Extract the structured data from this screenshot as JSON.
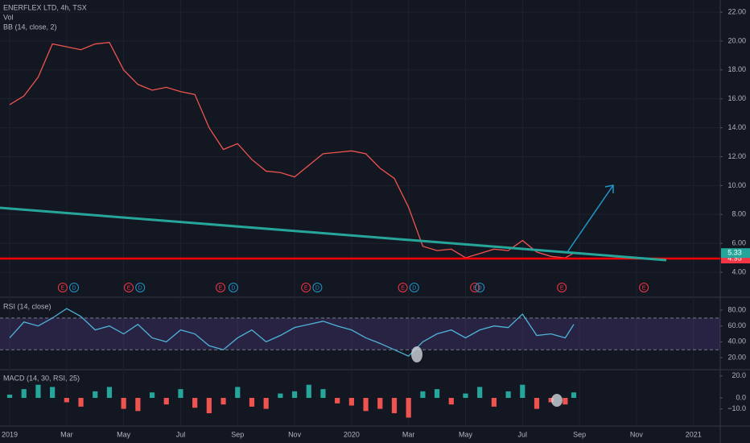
{
  "chart_data": [
    {
      "type": "line",
      "title": "ENERFLEX LTD, 4h, TSX",
      "volume_label": "Vol",
      "indicator": "BB (14, close, 2)",
      "x": [
        0,
        0.5,
        1,
        1.5,
        2,
        2.5,
        3,
        3.5,
        4,
        4.5,
        5,
        5.5,
        6,
        6.5,
        7,
        7.5,
        8,
        8.5,
        9,
        9.5,
        10,
        10.5,
        11,
        11.5,
        12,
        12.5,
        13,
        13.5,
        14,
        14.5,
        15,
        15.5,
        16,
        16.5,
        17,
        17.5,
        18,
        18.5,
        19,
        19.5,
        19.8
      ],
      "values": [
        15.6,
        16.2,
        17.5,
        19.8,
        19.6,
        19.4,
        19.8,
        19.9,
        18.0,
        17.0,
        16.6,
        16.8,
        16.5,
        16.3,
        14.0,
        12.5,
        12.9,
        11.8,
        11.0,
        10.9,
        10.6,
        11.4,
        12.2,
        12.3,
        12.4,
        12.2,
        11.2,
        10.5,
        8.5,
        5.8,
        5.5,
        5.6,
        5.0,
        5.3,
        5.6,
        5.5,
        6.2,
        5.4,
        5.1,
        5.0,
        5.33
      ],
      "color": "#ef5350",
      "last_value": 5.33,
      "last_label": "5.33",
      "level": 4.95,
      "level_label": "4.95",
      "xlim": [
        -0.34,
        24.94
      ],
      "ylim": [
        2.33,
        22.84
      ],
      "xticks": [
        {
          "value": 0,
          "label": "2019"
        },
        {
          "value": 2,
          "label": "Mar"
        },
        {
          "value": 4,
          "label": "May"
        },
        {
          "value": 6,
          "label": "Jul"
        },
        {
          "value": 8,
          "label": "Sep"
        },
        {
          "value": 10,
          "label": "Nov"
        },
        {
          "value": 12,
          "label": "2020"
        },
        {
          "value": 14,
          "label": "Mar"
        },
        {
          "value": 16,
          "label": "May"
        },
        {
          "value": 18,
          "label": "Jul"
        },
        {
          "value": 20,
          "label": "Sep"
        },
        {
          "value": 22,
          "label": "Nov"
        },
        {
          "value": 24,
          "label": "2021"
        }
      ],
      "yticks": [
        {
          "value": 4,
          "label": "4.00"
        },
        {
          "value": 6,
          "label": "6.00"
        },
        {
          "value": 8,
          "label": "8.00"
        },
        {
          "value": 10,
          "label": "10.00"
        },
        {
          "value": 12,
          "label": "12.00"
        },
        {
          "value": 14,
          "label": "14.00"
        },
        {
          "value": 16,
          "label": "16.00"
        },
        {
          "value": 18,
          "label": "18.00"
        },
        {
          "value": 20,
          "label": "20.00"
        },
        {
          "value": 22,
          "label": "22.00"
        }
      ],
      "grid": true,
      "events": [
        {
          "label": "E",
          "x": 1.86
        },
        {
          "label": "D",
          "x": 2.26
        },
        {
          "label": "E",
          "x": 4.18
        },
        {
          "label": "D",
          "x": 4.58
        },
        {
          "label": "E",
          "x": 7.4
        },
        {
          "label": "D",
          "x": 7.85
        },
        {
          "label": "E",
          "x": 10.4
        },
        {
          "label": "D",
          "x": 10.8
        },
        {
          "label": "E",
          "x": 13.8
        },
        {
          "label": "D",
          "x": 14.2
        },
        {
          "label": "E",
          "x": 16.33
        },
        {
          "label": "D",
          "x": 16.5
        },
        {
          "label": "E",
          "x": 19.38
        },
        {
          "label": "E",
          "x": 22.26
        }
      ]
    },
    {
      "type": "line",
      "title": "RSI (14, close)",
      "x": [
        0,
        0.5,
        1,
        1.5,
        2,
        2.5,
        3,
        3.5,
        4,
        4.5,
        5,
        5.5,
        6,
        6.5,
        7,
        7.5,
        8,
        8.5,
        9,
        9.5,
        10,
        10.5,
        11,
        11.5,
        12,
        12.5,
        13,
        13.5,
        14,
        14.5,
        15,
        15.5,
        16,
        16.5,
        17,
        17.5,
        18,
        18.5,
        19,
        19.5,
        19.8
      ],
      "values": [
        45,
        65,
        60,
        70,
        82,
        72,
        55,
        60,
        50,
        62,
        45,
        40,
        55,
        50,
        35,
        30,
        45,
        55,
        40,
        48,
        58,
        62,
        66,
        60,
        55,
        45,
        38,
        30,
        22,
        40,
        50,
        55,
        45,
        55,
        60,
        58,
        75,
        48,
        50,
        45,
        62
      ],
      "color": "#4fb3d9",
      "band": [
        30,
        70
      ],
      "xlim": [
        -0.34,
        24.94
      ],
      "ylim": [
        5.8,
        95.3
      ],
      "yticks": [
        {
          "value": 20,
          "label": "20.00"
        },
        {
          "value": 40,
          "label": "40.00"
        },
        {
          "value": 60,
          "label": "60.00"
        },
        {
          "value": 80,
          "label": "80.00"
        }
      ]
    },
    {
      "type": "bar",
      "title": "MACD (14, 30, RSI, 25)",
      "x": [
        0,
        0.5,
        1,
        1.5,
        2,
        2.5,
        3,
        3.5,
        4,
        4.5,
        5,
        5.5,
        6,
        6.5,
        7,
        7.5,
        8,
        8.5,
        9,
        9.5,
        10,
        10.5,
        11,
        11.5,
        12,
        12.5,
        13,
        13.5,
        14,
        14.5,
        15,
        15.5,
        16,
        16.5,
        17,
        17.5,
        18,
        18.5,
        19,
        19.5,
        19.8
      ],
      "values": [
        3,
        8,
        12,
        10,
        -4,
        -8,
        6,
        10,
        -10,
        -12,
        5,
        -6,
        8,
        -9,
        -14,
        -6,
        10,
        -8,
        -10,
        4,
        6,
        12,
        8,
        -5,
        -7,
        -12,
        -10,
        -14,
        -18,
        6,
        8,
        -6,
        4,
        10,
        -8,
        6,
        12,
        -10,
        -4,
        -6,
        5
      ],
      "colors": [
        "#26a69a",
        "#ef5350"
      ],
      "xlim": [
        -0.34,
        24.94
      ],
      "ylim": [
        -25,
        25
      ],
      "yticks": [
        {
          "value": 20,
          "label": "20.0"
        },
        {
          "value": 0,
          "label": "0.0"
        },
        {
          "value": -10,
          "label": "−10.0"
        }
      ]
    }
  ]
}
